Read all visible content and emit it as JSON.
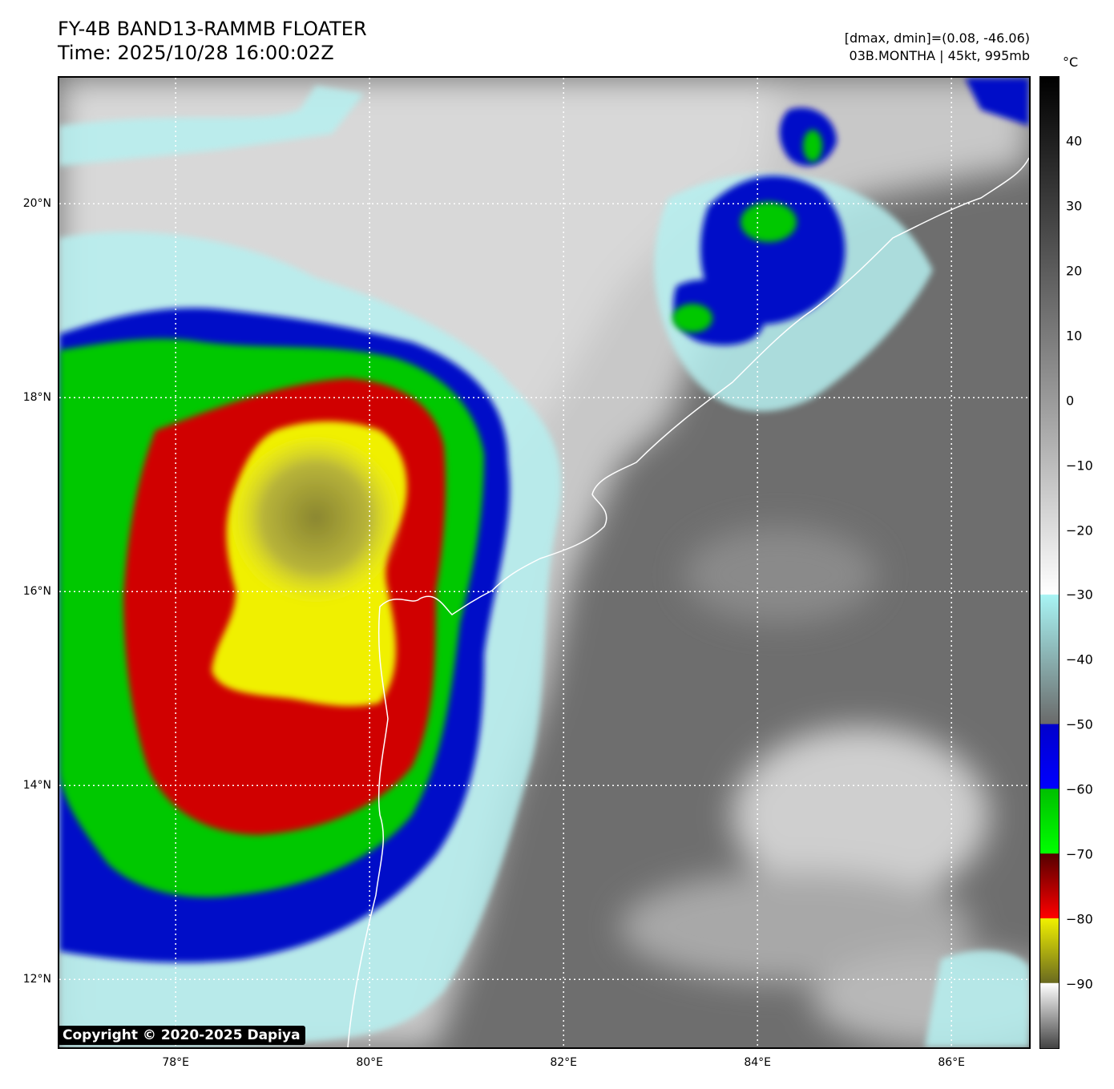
{
  "header": {
    "title": "FY-4B BAND13-RAMMB FLOATER",
    "time": "Time: 2025/10/28 16:00:02Z",
    "dmax_dmin": "[dmax, dmin]=(0.08, -46.06)",
    "storm": "03B.MONTHA | 45kt, 995mb"
  },
  "map": {
    "lat_range": [
      11.3,
      21.3
    ],
    "lon_range": [
      76.8,
      86.8
    ],
    "lat_labels": [
      {
        "value": 12,
        "text": "12°N"
      },
      {
        "value": 14,
        "text": "14°N"
      },
      {
        "value": 16,
        "text": "16°N"
      },
      {
        "value": 18,
        "text": "18°N"
      },
      {
        "value": 20,
        "text": "20°N"
      }
    ],
    "lon_labels": [
      {
        "value": 78,
        "text": "78°E"
      },
      {
        "value": 80,
        "text": "80°E"
      },
      {
        "value": 82,
        "text": "82°E"
      },
      {
        "value": 84,
        "text": "84°E"
      },
      {
        "value": 86,
        "text": "86°E"
      }
    ],
    "gridlines": "dotted white",
    "coastline_color": "#ffffff"
  },
  "colorbar": {
    "unit": "°C",
    "range": [
      -100,
      50
    ],
    "ticks": [
      {
        "value": 40,
        "text": "40"
      },
      {
        "value": 30,
        "text": "30"
      },
      {
        "value": 20,
        "text": "20"
      },
      {
        "value": 10,
        "text": "10"
      },
      {
        "value": 0,
        "text": "0"
      },
      {
        "value": -10,
        "text": "−10"
      },
      {
        "value": -20,
        "text": "−20"
      },
      {
        "value": -30,
        "text": "−30"
      },
      {
        "value": -40,
        "text": "−40"
      },
      {
        "value": -50,
        "text": "−50"
      },
      {
        "value": -60,
        "text": "−60"
      },
      {
        "value": -70,
        "text": "−70"
      },
      {
        "value": -80,
        "text": "−80"
      },
      {
        "value": -90,
        "text": "−90"
      }
    ],
    "colors": {
      "warm_black": "#000000",
      "warm_white": "#ffffff",
      "cyan": "#a8f4f4",
      "blue": "#0000cc",
      "green": "#00c000",
      "red": "#cc0000",
      "yellow": "#f0f000",
      "olive": "#6a6a20"
    }
  },
  "copyright": "Copyright © 2020-2025 Dapiya"
}
